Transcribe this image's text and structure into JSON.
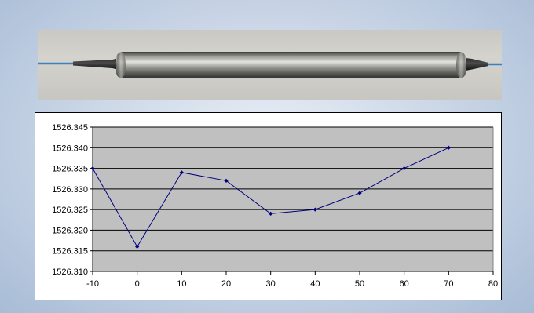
{
  "colors": {
    "plot_background": "#c0c0c0",
    "series_line": "#000080",
    "gridline": "#000000"
  },
  "photo": {
    "subject": "inline fiber-optic component with blue fiber leads"
  },
  "chart_data": {
    "type": "line",
    "x": [
      -10,
      0,
      10,
      20,
      30,
      40,
      50,
      60,
      70
    ],
    "series": [
      {
        "values": [
          1526.335,
          1526.316,
          1526.334,
          1526.332,
          1526.324,
          1526.325,
          1526.329,
          1526.335,
          1526.34
        ]
      }
    ],
    "xlim": [
      -10,
      80
    ],
    "ylim": [
      1526.31,
      1526.345
    ],
    "x_ticks": [
      "-10",
      "0",
      "10",
      "20",
      "30",
      "40",
      "50",
      "60",
      "70",
      "80"
    ],
    "y_ticks": [
      "1526.310",
      "1526.315",
      "1526.320",
      "1526.325",
      "1526.330",
      "1526.335",
      "1526.340",
      "1526.345"
    ],
    "grid": "horizontal",
    "legend": "none",
    "marker": "diamond"
  }
}
